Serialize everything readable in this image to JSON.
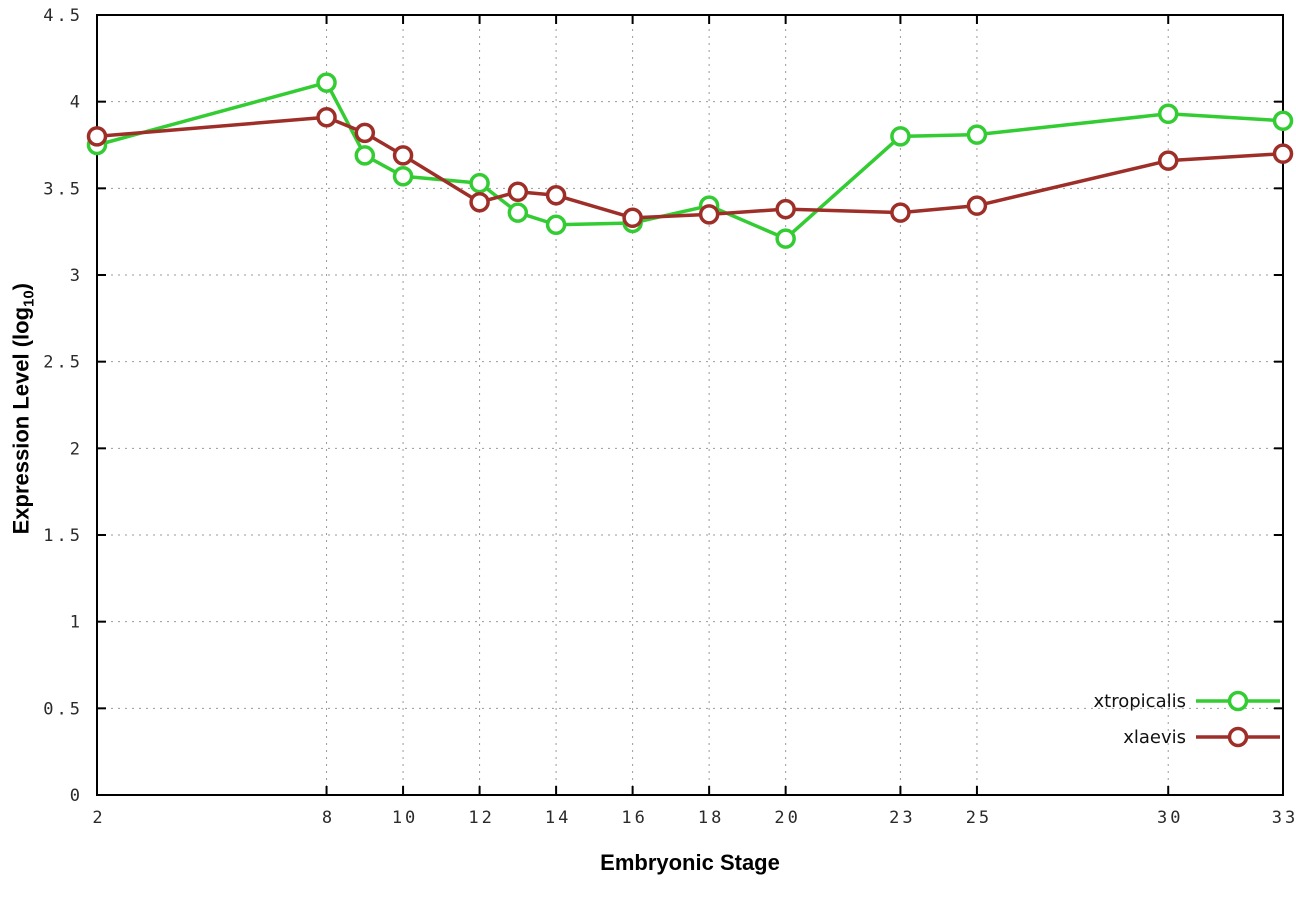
{
  "chart_data": {
    "type": "line",
    "title": "",
    "xlabel": "Embryonic Stage",
    "ylabel_main": "Expression Level (log",
    "ylabel_sub": "10",
    "ylabel_close": ")",
    "xlim": [
      2,
      33
    ],
    "ylim": [
      0,
      4.5
    ],
    "xticks": [
      2,
      8,
      10,
      12,
      14,
      16,
      18,
      20,
      23,
      25,
      30,
      33
    ],
    "yticks": [
      0,
      0.5,
      1,
      1.5,
      2,
      2.5,
      3,
      3.5,
      4,
      4.5
    ],
    "grid": true,
    "legend_position": "bottom-right",
    "x": [
      2,
      8,
      9,
      10,
      12,
      13,
      14,
      16,
      18,
      20,
      23,
      25,
      30,
      33
    ],
    "series": [
      {
        "name": "xtropicalis",
        "color": "#33cc33",
        "values": [
          3.75,
          4.11,
          3.69,
          3.57,
          3.53,
          3.36,
          3.29,
          3.3,
          3.4,
          3.21,
          3.8,
          3.81,
          3.93,
          3.89
        ]
      },
      {
        "name": "xlaevis",
        "color": "#9e2f28",
        "values": [
          3.8,
          3.91,
          3.82,
          3.69,
          3.42,
          3.48,
          3.46,
          3.33,
          3.35,
          3.38,
          3.36,
          3.4,
          3.66,
          3.7
        ]
      }
    ]
  }
}
